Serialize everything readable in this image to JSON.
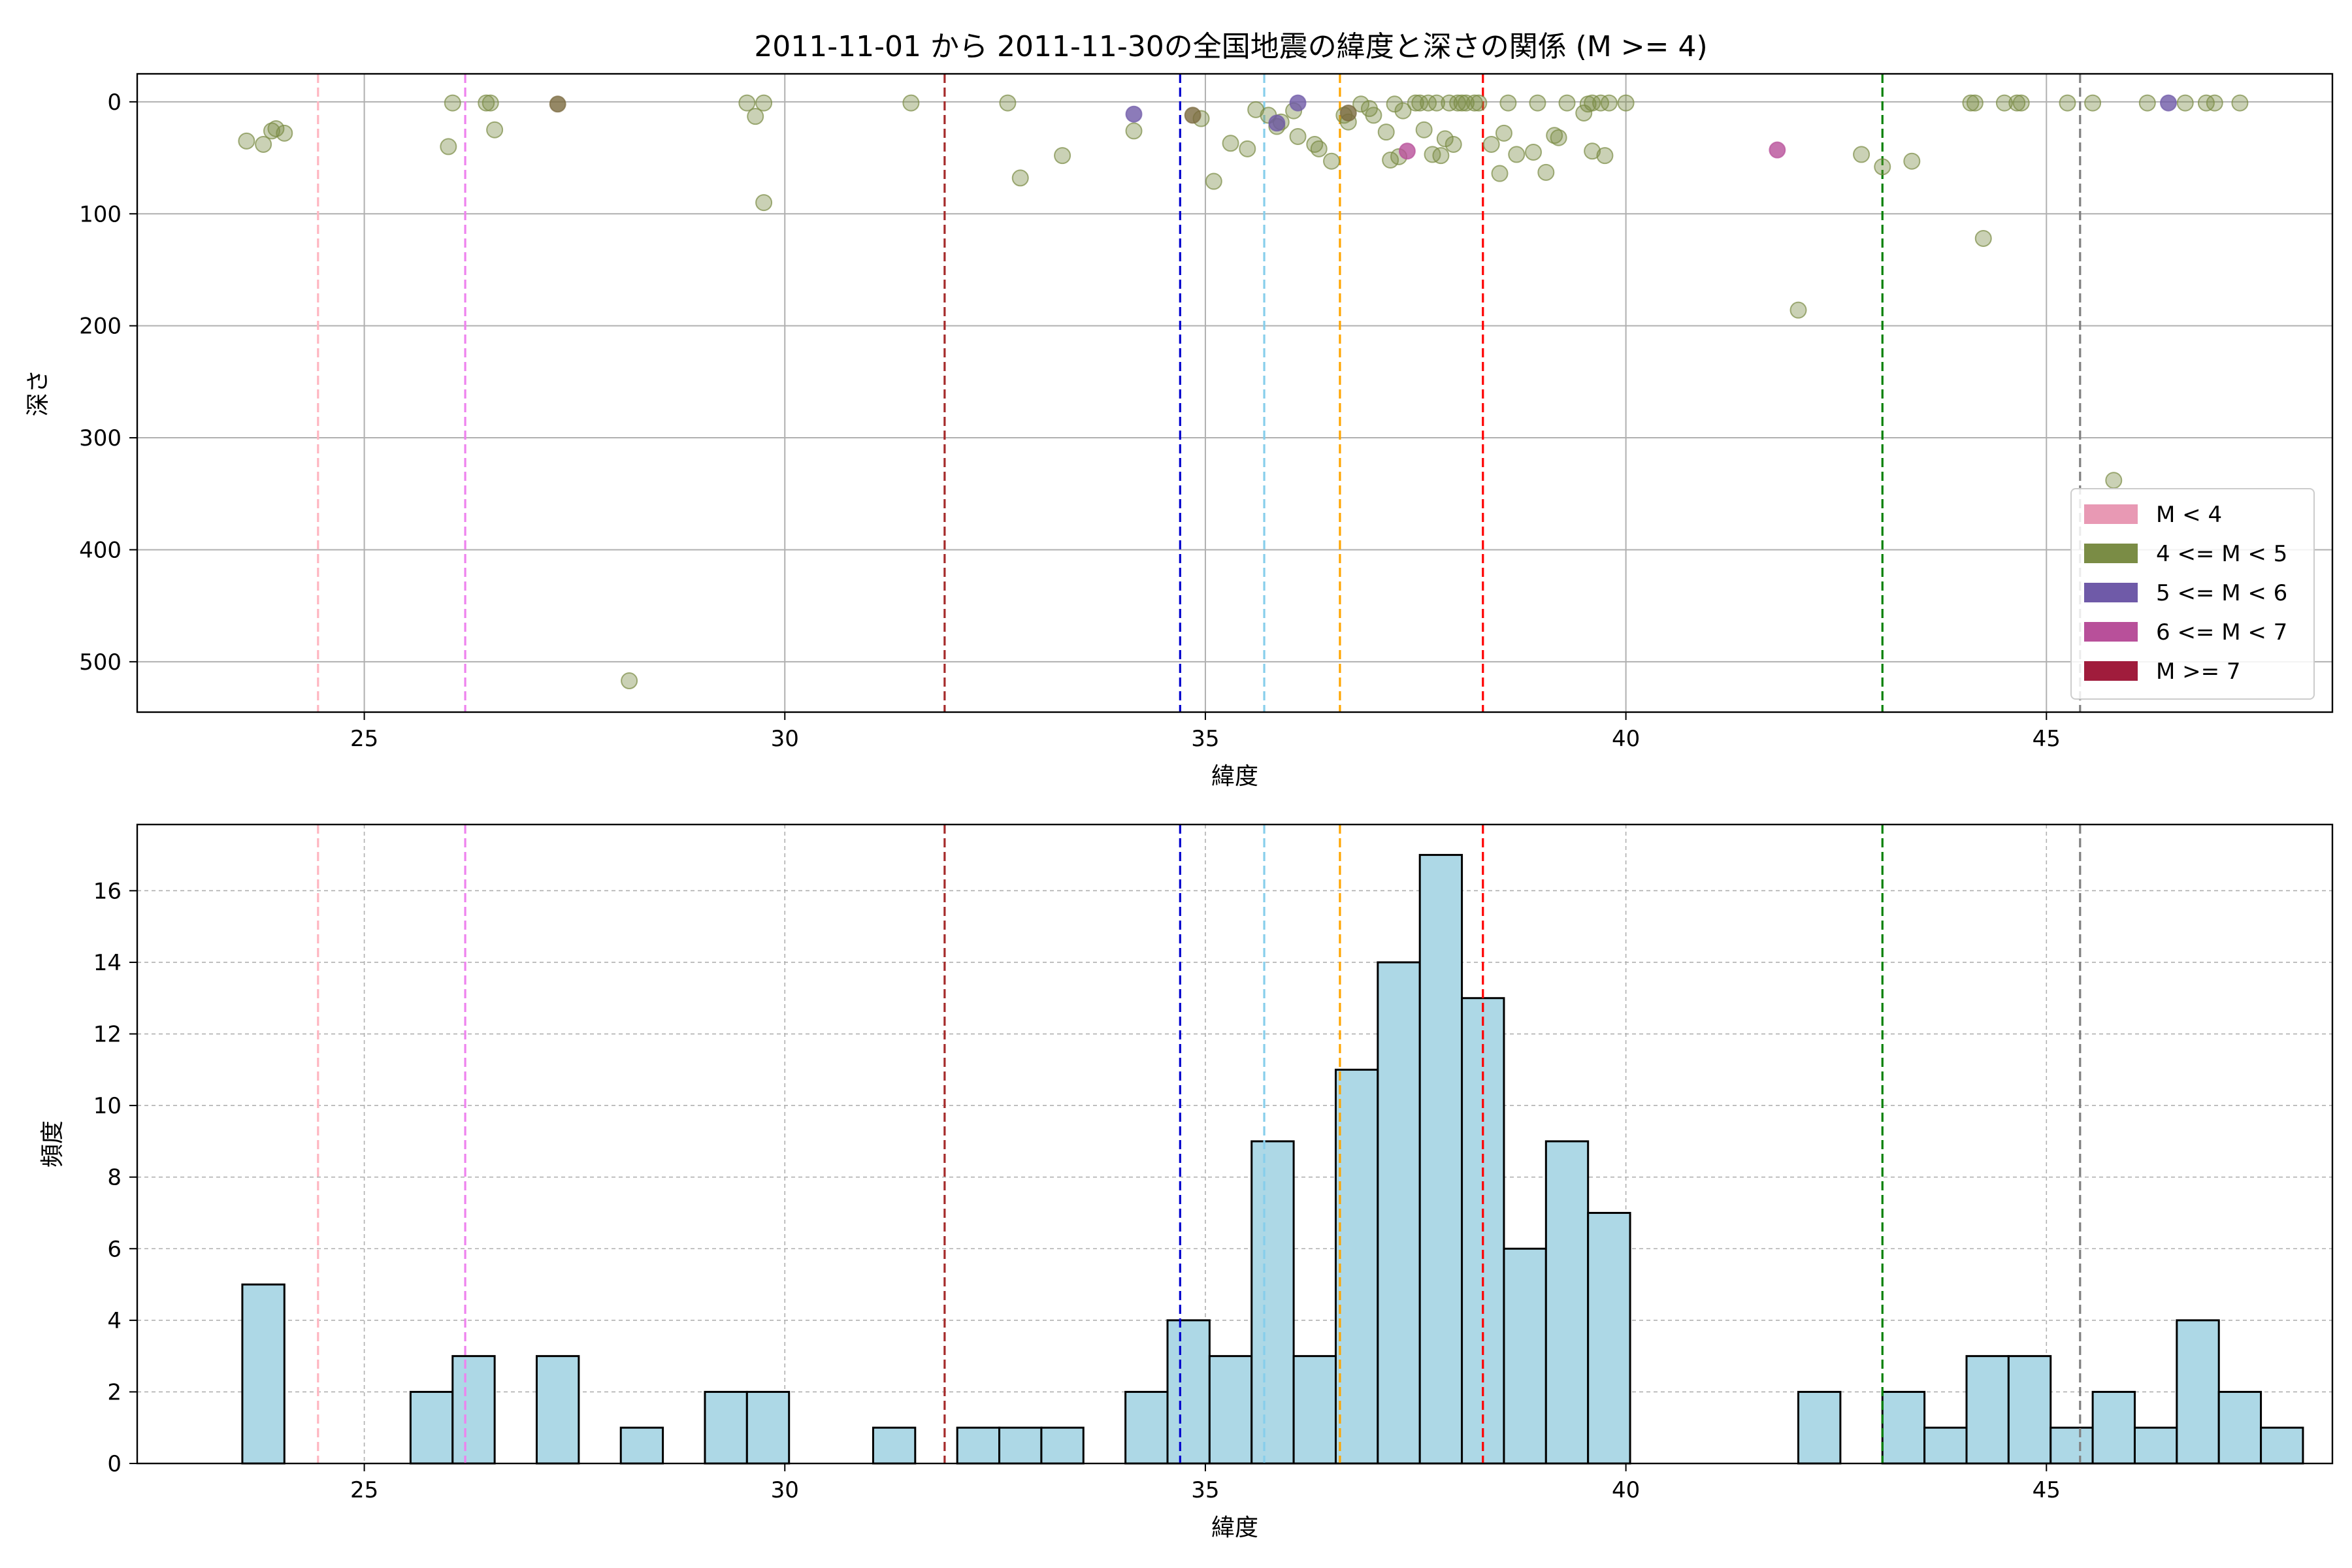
{
  "chart_data": [
    {
      "type": "scatter",
      "title": "2011-11-01 から 2011-11-30の全国地震の緯度と深さの関係 (M >= 4)",
      "xlabel": "緯度",
      "ylabel": "深さ",
      "xlim": [
        22.3,
        48.4
      ],
      "ylim": [
        545,
        -25
      ],
      "y_inverted": true,
      "x_ticks": [
        "25",
        "30",
        "35",
        "40",
        "45"
      ],
      "y_ticks": [
        "0",
        "100",
        "200",
        "300",
        "400",
        "500"
      ],
      "grid": "solid",
      "legend_position": "lower right",
      "legend": [
        {
          "label": "M < 4",
          "color": "#e899b4"
        },
        {
          "label": "4 <= M < 5",
          "color": "#7a8c45"
        },
        {
          "label": "5 <= M < 6",
          "color": "#6f5aa8"
        },
        {
          "label": "6 <= M < 7",
          "color": "#b8509a"
        },
        {
          "label": "M >= 7",
          "color": "#a01c3c"
        }
      ],
      "vlines": [
        {
          "x": 24.45,
          "color": "#ffb6c1"
        },
        {
          "x": 26.2,
          "color": "#ee82ee"
        },
        {
          "x": 31.9,
          "color": "#a52a2a"
        },
        {
          "x": 34.7,
          "color": "#0000cd"
        },
        {
          "x": 35.7,
          "color": "#87ceeb"
        },
        {
          "x": 36.6,
          "color": "#ffa500"
        },
        {
          "x": 38.3,
          "color": "#ff0000"
        },
        {
          "x": 43.05,
          "color": "#008000"
        },
        {
          "x": 45.4,
          "color": "#808080"
        }
      ],
      "series": [
        {
          "class": "4 <= M < 5",
          "color": "#7a8c45",
          "points": [
            [
              23.6,
              35
            ],
            [
              23.8,
              38
            ],
            [
              23.9,
              26
            ],
            [
              23.95,
              24
            ],
            [
              24.05,
              28
            ],
            [
              26.0,
              40
            ],
            [
              26.05,
              1
            ],
            [
              26.45,
              1
            ],
            [
              26.5,
              1
            ],
            [
              26.55,
              25
            ],
            [
              28.15,
              517
            ],
            [
              29.55,
              1
            ],
            [
              29.65,
              13
            ],
            [
              29.75,
              1
            ],
            [
              29.75,
              90
            ],
            [
              31.5,
              1
            ],
            [
              32.65,
              1
            ],
            [
              32.8,
              68
            ],
            [
              33.3,
              48
            ],
            [
              34.15,
              26
            ],
            [
              34.95,
              15
            ],
            [
              35.1,
              71
            ],
            [
              35.3,
              37
            ],
            [
              35.5,
              42
            ],
            [
              35.6,
              7
            ],
            [
              35.75,
              12
            ],
            [
              35.85,
              22
            ],
            [
              35.9,
              18
            ],
            [
              36.05,
              8
            ],
            [
              36.1,
              31
            ],
            [
              36.3,
              38
            ],
            [
              36.35,
              42
            ],
            [
              36.5,
              53
            ],
            [
              36.65,
              12
            ],
            [
              36.7,
              18
            ],
            [
              36.85,
              2
            ],
            [
              36.95,
              6
            ],
            [
              37.0,
              12
            ],
            [
              37.15,
              27
            ],
            [
              37.2,
              52
            ],
            [
              37.25,
              2
            ],
            [
              37.3,
              49
            ],
            [
              37.35,
              8
            ],
            [
              37.5,
              1
            ],
            [
              37.55,
              1
            ],
            [
              37.6,
              25
            ],
            [
              37.65,
              1
            ],
            [
              37.7,
              47
            ],
            [
              37.75,
              1
            ],
            [
              37.8,
              48
            ],
            [
              37.85,
              33
            ],
            [
              37.9,
              1
            ],
            [
              37.95,
              38
            ],
            [
              38.0,
              1
            ],
            [
              38.05,
              1
            ],
            [
              38.1,
              1
            ],
            [
              38.2,
              1
            ],
            [
              38.25,
              1
            ],
            [
              38.4,
              38
            ],
            [
              38.5,
              64
            ],
            [
              38.55,
              28
            ],
            [
              38.6,
              1
            ],
            [
              38.7,
              47
            ],
            [
              38.9,
              45
            ],
            [
              38.95,
              1
            ],
            [
              39.05,
              63
            ],
            [
              39.15,
              30
            ],
            [
              39.2,
              32
            ],
            [
              39.3,
              1
            ],
            [
              39.5,
              10
            ],
            [
              39.55,
              2
            ],
            [
              39.6,
              44
            ],
            [
              39.6,
              1
            ],
            [
              39.7,
              1
            ],
            [
              39.75,
              48
            ],
            [
              39.8,
              1
            ],
            [
              40.0,
              1
            ],
            [
              42.05,
              186
            ],
            [
              42.8,
              47
            ],
            [
              43.05,
              58
            ],
            [
              43.4,
              53
            ],
            [
              44.1,
              1
            ],
            [
              44.15,
              1
            ],
            [
              44.25,
              122
            ],
            [
              44.5,
              1
            ],
            [
              44.65,
              1
            ],
            [
              44.7,
              1
            ],
            [
              45.25,
              1
            ],
            [
              45.55,
              1
            ],
            [
              45.8,
              338
            ],
            [
              46.2,
              1
            ],
            [
              46.65,
              1
            ],
            [
              46.9,
              1
            ],
            [
              47.0,
              1
            ],
            [
              47.3,
              1
            ]
          ]
        },
        {
          "class": "5 <= M < 6",
          "color": "#6f5aa8",
          "points": [
            [
              34.15,
              11
            ],
            [
              35.85,
              19
            ],
            [
              36.1,
              1
            ],
            [
              46.45,
              1
            ]
          ]
        },
        {
          "class": "6 <= M < 7",
          "color": "#b8509a",
          "points": [
            [
              37.4,
              44
            ],
            [
              41.8,
              43
            ]
          ]
        },
        {
          "class": "overlapping",
          "color": "#7a6a3e",
          "points": [
            [
              27.3,
              2
            ],
            [
              34.85,
              12
            ],
            [
              36.7,
              10
            ]
          ]
        }
      ]
    },
    {
      "type": "bar",
      "xlabel": "緯度",
      "ylabel": "頻度",
      "xlim": [
        22.3,
        48.4
      ],
      "ylim": [
        0,
        17.85
      ],
      "x_ticks": [
        "25",
        "30",
        "35",
        "40",
        "45"
      ],
      "y_ticks": [
        "0",
        "2",
        "4",
        "6",
        "8",
        "10",
        "12",
        "14",
        "16"
      ],
      "grid": "dashed",
      "bin_start": 23.55,
      "bin_width": 0.5,
      "bar_color": "#add8e6",
      "bar_edge": "#000000",
      "counts": [
        5,
        0,
        0,
        0,
        2,
        3,
        0,
        3,
        0,
        1,
        0,
        2,
        2,
        0,
        0,
        1,
        0,
        1,
        1,
        1,
        0,
        2,
        4,
        3,
        9,
        3,
        11,
        14,
        17,
        13,
        6,
        9,
        7,
        0,
        0,
        0,
        0,
        2,
        0,
        2,
        1,
        3,
        3,
        1,
        2,
        1,
        4,
        2,
        1
      ],
      "vlines": [
        {
          "x": 24.45,
          "color": "#ffb6c1"
        },
        {
          "x": 26.2,
          "color": "#ee82ee"
        },
        {
          "x": 31.9,
          "color": "#a52a2a"
        },
        {
          "x": 34.7,
          "color": "#0000cd"
        },
        {
          "x": 35.7,
          "color": "#87ceeb"
        },
        {
          "x": 36.6,
          "color": "#ffa500"
        },
        {
          "x": 38.3,
          "color": "#ff0000"
        },
        {
          "x": 43.05,
          "color": "#008000"
        },
        {
          "x": 45.4,
          "color": "#808080"
        }
      ]
    }
  ]
}
